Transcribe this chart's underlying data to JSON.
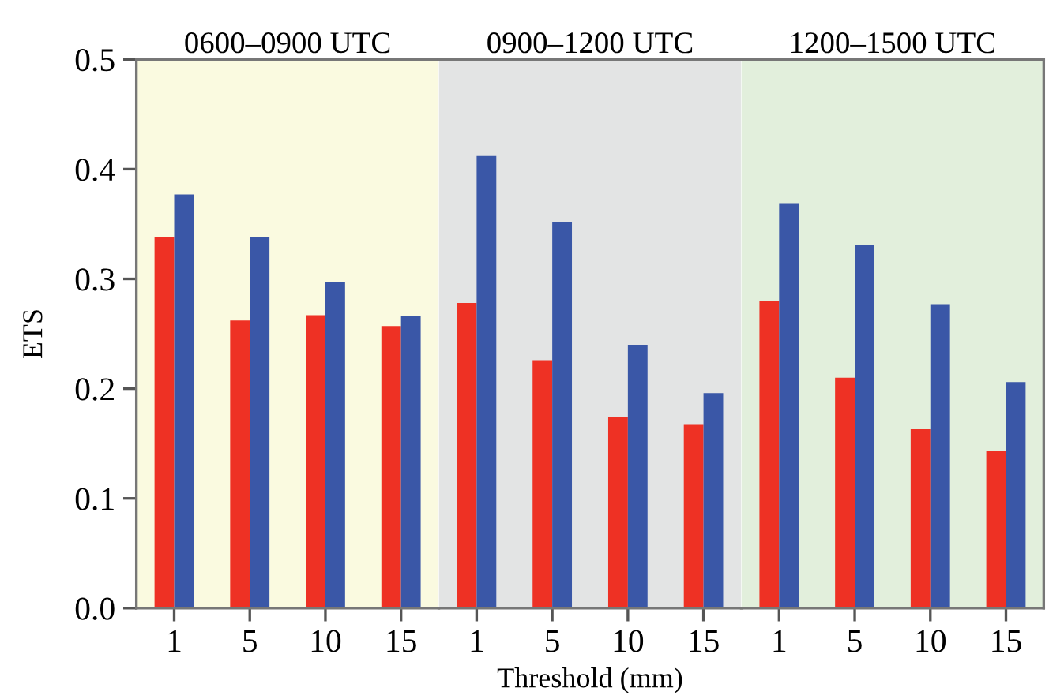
{
  "chart_data": [
    {
      "type": "bar",
      "title": "0600–0900 UTC",
      "ylabel": "ETS",
      "categories": [
        "1",
        "5",
        "10",
        "15"
      ],
      "series": [
        {
          "color": "#ee3124",
          "values": [
            0.338,
            0.262,
            0.267,
            0.257
          ]
        },
        {
          "color": "#3a57a7",
          "values": [
            0.377,
            0.338,
            0.297,
            0.266
          ]
        }
      ],
      "ylim": [
        0,
        0.5
      ],
      "yticks": [
        {
          "value": 0,
          "label": "0.0"
        },
        {
          "value": 0.1,
          "label": "0.1"
        },
        {
          "value": 0.2,
          "label": "0.2"
        },
        {
          "value": 0.3,
          "label": "0.3"
        },
        {
          "value": 0.4,
          "label": "0.4"
        },
        {
          "value": 0.5,
          "label": "0.5"
        }
      ],
      "bands": [
        {
          "axis": "x",
          "from": "1",
          "to": "15",
          "color": "#fafae0"
        }
      ]
    },
    {
      "type": "bar",
      "title": "0900–1200 UTC",
      "xlabel": "Threshold (mm)",
      "categories": [
        "1",
        "5",
        "10",
        "15"
      ],
      "series": [
        {
          "color": "#ee3124",
          "values": [
            0.278,
            0.226,
            0.174,
            0.167
          ]
        },
        {
          "color": "#3a57a7",
          "values": [
            0.412,
            0.352,
            0.24,
            0.196
          ]
        }
      ],
      "ylim": [
        0,
        0.5
      ],
      "tick_labels": "x",
      "bands": [
        {
          "axis": "x",
          "from": "1",
          "to": "15",
          "color": "#e3e4e4"
        }
      ]
    },
    {
      "type": "bar",
      "title": "1200–1500 UTC",
      "categories": [
        "1",
        "5",
        "10",
        "15"
      ],
      "series": [
        {
          "color": "#ee3124",
          "values": [
            0.28,
            0.21,
            0.163,
            0.143
          ]
        },
        {
          "color": "#3a57a7",
          "values": [
            0.369,
            0.331,
            0.277,
            0.206
          ]
        }
      ],
      "ylim": [
        0,
        0.5
      ],
      "tick_labels": "x",
      "bands": [
        {
          "axis": "x",
          "from": "1",
          "to": "15",
          "color": "#e2efdc"
        }
      ]
    }
  ]
}
